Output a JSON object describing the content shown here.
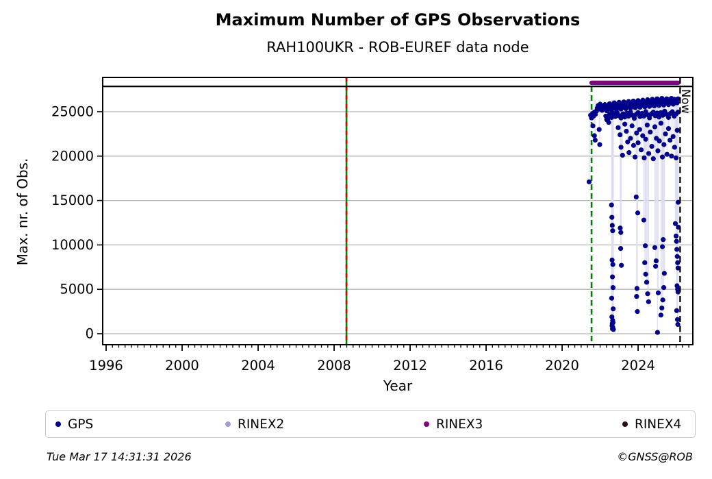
{
  "header": {
    "title": "Maximum Number of GPS Observations",
    "subtitle": "RAH100UKR - ROB-EUREF data node"
  },
  "chart_data": {
    "type": "scatter",
    "title": "Maximum Number of GPS Observations",
    "subtitle": "RAH100UKR - ROB-EUREF data node",
    "xlabel": "Year",
    "ylabel": "Max. nr. of Obs.",
    "xlim": [
      1995.82,
      2026.88
    ],
    "ylim": [
      -1234,
      28858
    ],
    "x_major_ticks": [
      1996,
      2000,
      2004,
      2008,
      2012,
      2016,
      2020,
      2024
    ],
    "x_minor_step_years": 0.3333,
    "y_major_ticks": [
      0,
      5000,
      10000,
      15000,
      20000,
      25000
    ],
    "grid": "horizontal-major-gray",
    "colors": {
      "gps": "#00008b",
      "rinex2": "#9f9fd4",
      "rinex3": "#7d087d",
      "rinex4": "#2d0a1e",
      "grid": "#b4b4b4",
      "stem": "#dcdcf2",
      "green_line": "#007f00",
      "red_dash": "#dd0000"
    },
    "availability_bars": [
      {
        "name": "RINEX3",
        "color": "#7d087d",
        "y": 28250,
        "x_start": 2021.55,
        "x_end": 2026.1
      }
    ],
    "top_boundary_line": {
      "y": 27850,
      "color": "#000000",
      "style": "solid"
    },
    "vertical_reference_lines": [
      {
        "x": 2008.65,
        "style": "solid-green-with-red-dashes"
      },
      {
        "x": 2021.55,
        "style": "dashed-green"
      },
      {
        "x": 2026.21,
        "style": "dashed-black",
        "label": "Now"
      }
    ],
    "now_label": "Now",
    "legend": {
      "position": "bottom",
      "items": [
        {
          "label": "GPS",
          "color": "#00008b"
        },
        {
          "label": "RINEX2",
          "color": "#9f9fd4"
        },
        {
          "label": "RINEX3",
          "color": "#7d087d"
        },
        {
          "label": "RINEX4",
          "color": "#2d0a1e"
        }
      ]
    },
    "series": [
      {
        "name": "GPS",
        "color": "#00008b",
        "points": [
          [
            2021.42,
            17100
          ],
          [
            2021.5,
            24600
          ],
          [
            2021.55,
            24300
          ],
          [
            2021.6,
            24800
          ],
          [
            2021.65,
            24500
          ],
          [
            2021.7,
            24950
          ],
          [
            2021.75,
            24700
          ],
          [
            2021.8,
            25050
          ],
          [
            2021.85,
            25400
          ],
          [
            2021.9,
            25700
          ],
          [
            2021.95,
            25300
          ],
          [
            2022.0,
            25850
          ],
          [
            2022.05,
            25500
          ],
          [
            2022.1,
            25150
          ],
          [
            2022.15,
            25600
          ],
          [
            2022.2,
            25350
          ],
          [
            2022.25,
            25800
          ],
          [
            2022.3,
            25450
          ],
          [
            2022.35,
            25100
          ],
          [
            2022.4,
            25650
          ],
          [
            2022.45,
            25300
          ],
          [
            2022.5,
            25900
          ],
          [
            2022.55,
            25500
          ],
          [
            2022.6,
            25200
          ],
          [
            2022.65,
            25750
          ],
          [
            2022.7,
            25400
          ],
          [
            2022.75,
            26000
          ],
          [
            2022.8,
            25550
          ],
          [
            2022.85,
            25250
          ],
          [
            2022.9,
            25800
          ],
          [
            2022.95,
            25450
          ],
          [
            2023.0,
            26050
          ],
          [
            2023.05,
            25600
          ],
          [
            2023.1,
            25300
          ],
          [
            2023.15,
            25850
          ],
          [
            2023.2,
            25500
          ],
          [
            2023.25,
            26100
          ],
          [
            2023.3,
            25650
          ],
          [
            2023.35,
            25350
          ],
          [
            2023.4,
            25900
          ],
          [
            2023.45,
            25550
          ],
          [
            2023.5,
            26150
          ],
          [
            2023.55,
            25700
          ],
          [
            2023.6,
            25400
          ],
          [
            2023.65,
            25950
          ],
          [
            2023.7,
            25600
          ],
          [
            2023.75,
            26200
          ],
          [
            2023.8,
            25750
          ],
          [
            2023.85,
            25450
          ],
          [
            2023.9,
            26000
          ],
          [
            2023.95,
            25650
          ],
          [
            2024.0,
            26250
          ],
          [
            2024.05,
            25800
          ],
          [
            2024.1,
            25500
          ],
          [
            2024.15,
            26050
          ],
          [
            2024.2,
            25700
          ],
          [
            2024.25,
            26300
          ],
          [
            2024.3,
            25850
          ],
          [
            2024.35,
            25550
          ],
          [
            2024.4,
            26100
          ],
          [
            2024.45,
            25750
          ],
          [
            2024.5,
            26350
          ],
          [
            2024.55,
            25900
          ],
          [
            2024.6,
            25600
          ],
          [
            2024.65,
            26150
          ],
          [
            2024.7,
            25800
          ],
          [
            2024.75,
            26400
          ],
          [
            2024.8,
            25950
          ],
          [
            2024.85,
            25650
          ],
          [
            2024.9,
            26200
          ],
          [
            2024.95,
            25850
          ],
          [
            2025.0,
            26450
          ],
          [
            2025.05,
            26000
          ],
          [
            2025.1,
            25700
          ],
          [
            2025.15,
            26250
          ],
          [
            2025.2,
            25900
          ],
          [
            2025.25,
            26500
          ],
          [
            2025.3,
            26050
          ],
          [
            2025.35,
            25750
          ],
          [
            2025.4,
            26300
          ],
          [
            2025.45,
            25950
          ],
          [
            2025.5,
            26450
          ],
          [
            2025.55,
            26100
          ],
          [
            2025.6,
            25800
          ],
          [
            2025.65,
            26350
          ],
          [
            2025.7,
            26000
          ],
          [
            2025.75,
            26500
          ],
          [
            2025.8,
            26150
          ],
          [
            2025.85,
            25850
          ],
          [
            2025.9,
            26400
          ],
          [
            2025.95,
            26050
          ],
          [
            2026.0,
            26300
          ],
          [
            2026.05,
            26000
          ],
          [
            2026.1,
            26450
          ],
          [
            2022.3,
            24500
          ],
          [
            2022.4,
            24200
          ],
          [
            2022.5,
            24700
          ],
          [
            2022.6,
            24350
          ],
          [
            2022.7,
            24800
          ],
          [
            2022.8,
            24450
          ],
          [
            2022.9,
            24900
          ],
          [
            2023.0,
            24550
          ],
          [
            2023.1,
            24300
          ],
          [
            2023.2,
            24750
          ],
          [
            2023.3,
            24400
          ],
          [
            2023.4,
            24850
          ],
          [
            2023.5,
            24500
          ],
          [
            2023.6,
            24950
          ],
          [
            2023.7,
            24600
          ],
          [
            2023.8,
            24250
          ],
          [
            2023.9,
            24700
          ],
          [
            2024.0,
            24900
          ],
          [
            2024.1,
            24450
          ],
          [
            2024.2,
            24800
          ],
          [
            2024.3,
            24500
          ],
          [
            2024.4,
            25000
          ],
          [
            2024.5,
            24650
          ],
          [
            2024.6,
            24300
          ],
          [
            2024.7,
            24750
          ],
          [
            2024.8,
            24950
          ],
          [
            2024.9,
            24550
          ],
          [
            2025.0,
            24850
          ],
          [
            2025.1,
            24400
          ],
          [
            2025.2,
            24900
          ],
          [
            2025.3,
            24600
          ],
          [
            2025.4,
            25050
          ],
          [
            2025.5,
            24700
          ],
          [
            2025.6,
            24350
          ],
          [
            2025.7,
            24800
          ],
          [
            2025.8,
            25000
          ],
          [
            2025.9,
            24500
          ],
          [
            2026.0,
            24750
          ],
          [
            2026.1,
            24950
          ],
          [
            2022.95,
            23200
          ],
          [
            2023.05,
            22400
          ],
          [
            2023.1,
            21000
          ],
          [
            2023.18,
            20100
          ],
          [
            2023.3,
            23600
          ],
          [
            2023.38,
            22800
          ],
          [
            2023.45,
            21600
          ],
          [
            2023.52,
            20400
          ],
          [
            2023.6,
            22000
          ],
          [
            2023.68,
            23400
          ],
          [
            2023.76,
            21200
          ],
          [
            2023.84,
            19900
          ],
          [
            2023.92,
            22600
          ],
          [
            2024.0,
            21500
          ],
          [
            2024.08,
            23000
          ],
          [
            2024.16,
            20700
          ],
          [
            2024.24,
            22300
          ],
          [
            2024.32,
            19800
          ],
          [
            2024.4,
            21900
          ],
          [
            2024.48,
            23500
          ],
          [
            2024.56,
            20300
          ],
          [
            2024.64,
            22700
          ],
          [
            2024.72,
            21100
          ],
          [
            2024.8,
            19700
          ],
          [
            2024.88,
            23300
          ],
          [
            2024.96,
            22000
          ],
          [
            2025.04,
            20600
          ],
          [
            2025.12,
            21700
          ],
          [
            2025.2,
            23700
          ],
          [
            2025.28,
            19900
          ],
          [
            2025.36,
            21300
          ],
          [
            2025.44,
            22500
          ],
          [
            2025.52,
            20200
          ],
          [
            2025.6,
            23100
          ],
          [
            2025.68,
            21800
          ],
          [
            2025.76,
            20000
          ],
          [
            2025.84,
            22200
          ],
          [
            2025.92,
            21000
          ],
          [
            2026.0,
            19800
          ],
          [
            2026.06,
            22900
          ],
          [
            2021.62,
            23400
          ],
          [
            2021.7,
            22300
          ],
          [
            2021.74,
            21800
          ],
          [
            2021.95,
            23000
          ],
          [
            2021.98,
            21300
          ],
          [
            2022.45,
            23800
          ],
          [
            2022.35,
            24100
          ],
          [
            2022.6,
            14500
          ],
          [
            2022.62,
            13100
          ],
          [
            2022.64,
            12200
          ],
          [
            2022.66,
            11600
          ],
          [
            2022.63,
            8300
          ],
          [
            2022.67,
            7800
          ],
          [
            2022.65,
            6400
          ],
          [
            2022.68,
            5200
          ],
          [
            2022.61,
            4000
          ],
          [
            2022.69,
            2800
          ],
          [
            2022.62,
            1900
          ],
          [
            2022.66,
            1500
          ],
          [
            2022.64,
            1150
          ],
          [
            2022.63,
            900
          ],
          [
            2022.67,
            700
          ],
          [
            2022.65,
            550
          ],
          [
            2022.7,
            480
          ],
          [
            2022.68,
            1250
          ],
          [
            2023.06,
            11900
          ],
          [
            2023.09,
            11400
          ],
          [
            2023.12,
            7700
          ],
          [
            2023.08,
            9600
          ],
          [
            2023.9,
            15400
          ],
          [
            2023.94,
            5100
          ],
          [
            2023.96,
            2500
          ],
          [
            2023.92,
            4200
          ],
          [
            2023.98,
            13600
          ],
          [
            2024.3,
            12800
          ],
          [
            2024.35,
            8000
          ],
          [
            2024.4,
            6700
          ],
          [
            2024.45,
            5800
          ],
          [
            2024.5,
            4500
          ],
          [
            2024.55,
            3600
          ],
          [
            2024.38,
            9900
          ],
          [
            2024.88,
            9700
          ],
          [
            2024.95,
            8200
          ],
          [
            2025.02,
            150
          ],
          [
            2025.06,
            4600
          ],
          [
            2024.92,
            7600
          ],
          [
            2025.2,
            2100
          ],
          [
            2025.25,
            2900
          ],
          [
            2025.3,
            3800
          ],
          [
            2025.35,
            5200
          ],
          [
            2025.38,
            6800
          ],
          [
            2025.28,
            9800
          ],
          [
            2025.32,
            10600
          ],
          [
            2025.96,
            12400
          ],
          [
            2026.0,
            11000
          ],
          [
            2026.02,
            10400
          ],
          [
            2026.04,
            9500
          ],
          [
            2026.06,
            8700
          ],
          [
            2026.08,
            8000
          ],
          [
            2026.1,
            7400
          ],
          [
            2026.05,
            5400
          ],
          [
            2026.08,
            5000
          ],
          [
            2026.1,
            4700
          ],
          [
            2026.03,
            2600
          ],
          [
            2026.07,
            1600
          ],
          [
            2026.09,
            1050
          ],
          [
            2026.11,
            14800
          ],
          [
            2026.12,
            12000
          ]
        ]
      }
    ]
  },
  "footer": {
    "datetime": "Tue Mar 17 14:31:31 2026",
    "copyright": "©GNSS@ROB"
  }
}
